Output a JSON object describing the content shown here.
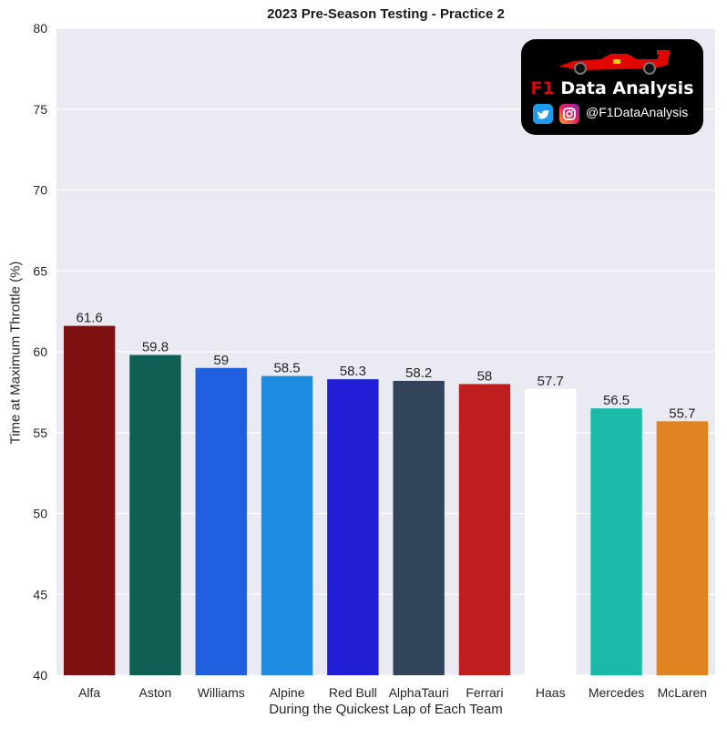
{
  "chart_data": {
    "type": "bar",
    "title": "2023 Pre-Season Testing - Practice 2",
    "xlabel": "During the Quickest Lap of Each Team",
    "ylabel": "Time at Maximum Throttle (%)",
    "ylim": [
      40,
      80
    ],
    "yticks": [
      40,
      45,
      50,
      55,
      60,
      65,
      70,
      75,
      80
    ],
    "grid": true,
    "categories": [
      "Alfa",
      "Aston",
      "Williams",
      "Alpine",
      "Red Bull",
      "AlphaTauri",
      "Ferrari",
      "Haas",
      "Mercedes",
      "McLaren"
    ],
    "values": [
      61.6,
      59.8,
      59,
      58.5,
      58.3,
      58.2,
      58,
      57.7,
      56.5,
      55.7
    ],
    "value_labels": [
      "61.6",
      "59.8",
      "59",
      "58.5",
      "58.3",
      "58.2",
      "58",
      "57.7",
      "56.5",
      "55.7"
    ],
    "colors": [
      "#7d1111",
      "#0f5f55",
      "#2060e0",
      "#1e8ce0",
      "#211ed6",
      "#32445a",
      "#be1e1e",
      "#ffffff",
      "#1ab9a8",
      "#df8420"
    ],
    "plot_background": "#eaeaf2"
  },
  "logo": {
    "brand_prefix": "F1",
    "brand_text": "Data Analysis",
    "handle": "@F1DataAnalysis",
    "twitter_icon": "twitter-icon",
    "instagram_icon": "instagram-icon"
  }
}
